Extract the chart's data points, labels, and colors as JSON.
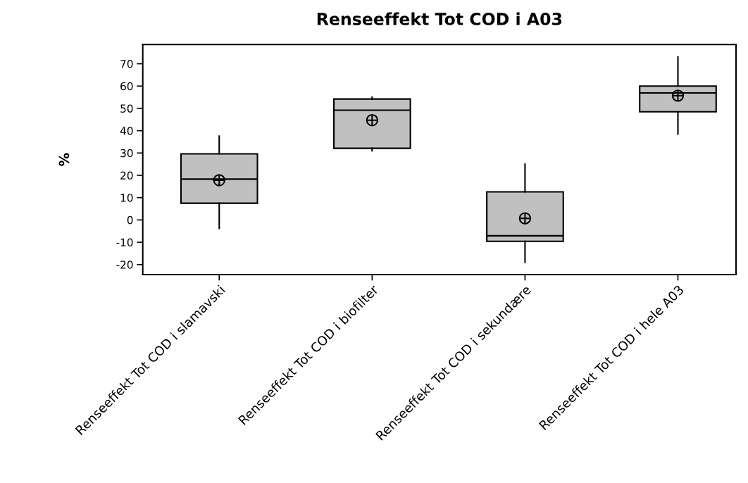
{
  "chart_data": {
    "type": "box",
    "title": "Renseeffekt Tot COD i A03",
    "ylabel": "%",
    "categories": [
      "Renseeffekt Tot COD i slamavski",
      "Renseeffekt Tot COD i biofilter",
      "Renseeffekt Tot COD i sekundære",
      "Renseeffekt Tot COD i hele A03"
    ],
    "boxes": [
      {
        "low": -3.8,
        "q1": 7.5,
        "median": 18.3,
        "q3": 29.6,
        "high": 37.6,
        "mean": 17.8
      },
      {
        "low": 31.0,
        "q1": 32.1,
        "median": 49.2,
        "q3": 54.2,
        "high": 55.0,
        "mean": 44.7
      },
      {
        "low": -19.0,
        "q1": -9.6,
        "median": -7.1,
        "q3": 12.6,
        "high": 25.0,
        "mean": 0.7
      },
      {
        "low": 38.5,
        "q1": 48.5,
        "median": 56.9,
        "q3": 60.0,
        "high": 73.1,
        "mean": 55.7
      }
    ],
    "color": "#c0c0c0",
    "ylim": [
      -24.5,
      78.6
    ],
    "yticks": [
      -20,
      -10,
      0,
      10,
      20,
      30,
      40,
      50,
      60,
      70
    ],
    "grid": false
  }
}
